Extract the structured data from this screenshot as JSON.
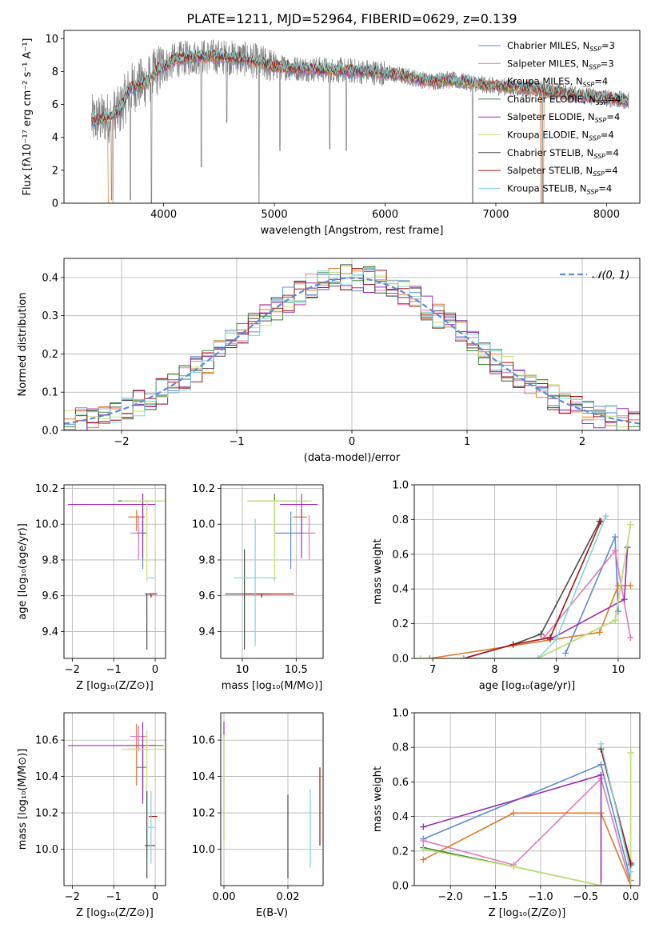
{
  "title": "PLATE=1211, MJD=52964, FIBERID=0629, z=0.139",
  "colors": {
    "chabrier_miles": "#5b8bd6",
    "salpeter_miles": "#e07ab8",
    "kroupa_miles": "#e07a2a",
    "chabrier_elodie": "#3a8a3a",
    "salpeter_elodie": "#9a2fb0",
    "kroupa_elodie": "#c7e07a",
    "chabrier_stelib": "#4a4a4a",
    "salpeter_stelib": "#a31616",
    "kroupa_stelib": "#7fd6d6",
    "data": "#808080"
  },
  "chart_data": [
    {
      "id": "spectrum",
      "type": "line",
      "xlabel": "wavelength [Angstrom, rest frame]",
      "ylabel": "Flux [fλ10⁻¹⁷ erg cm⁻² s⁻¹ A⁻¹]",
      "xlim": [
        3100,
        8300
      ],
      "ylim": [
        0,
        10.5
      ],
      "xticks": [
        4000,
        5000,
        6000,
        7000,
        8000
      ],
      "yticks": [
        0,
        2,
        4,
        6,
        8,
        10
      ],
      "grid": false,
      "legend_position": "top-right",
      "legend": [
        {
          "label": "Chabrier MILES, N",
          "sub": "SSP",
          "tail": "=3",
          "color_key": "chabrier_miles"
        },
        {
          "label": "Salpeter MILES, N",
          "sub": "SSP",
          "tail": "=3",
          "color_key": "salpeter_miles"
        },
        {
          "label": "Kroupa MILES, N",
          "sub": "SSP",
          "tail": "=4",
          "color_key": "kroupa_miles"
        },
        {
          "label": "Chabrier ELODIE, N",
          "sub": "SSP",
          "tail": "=4",
          "color_key": "chabrier_elodie"
        },
        {
          "label": "Salpeter ELODIE, N",
          "sub": "SSP",
          "tail": "=4",
          "color_key": "salpeter_elodie"
        },
        {
          "label": "Kroupa ELODIE, N",
          "sub": "SSP",
          "tail": "=4",
          "color_key": "kroupa_elodie"
        },
        {
          "label": "Chabrier STELIB, N",
          "sub": "SSP",
          "tail": "=4",
          "color_key": "chabrier_stelib"
        },
        {
          "label": "Salpeter STELIB, N",
          "sub": "SSP",
          "tail": "=4",
          "color_key": "salpeter_stelib"
        },
        {
          "label": "Kroupa STELIB, N",
          "sub": "SSP",
          "tail": "=4",
          "color_key": "kroupa_stelib"
        }
      ],
      "continuum": [
        [
          3350,
          5.0
        ],
        [
          3500,
          5.2
        ],
        [
          3600,
          5.6
        ],
        [
          3700,
          7.0
        ],
        [
          3850,
          7.4
        ],
        [
          3950,
          8.1
        ],
        [
          4100,
          8.7
        ],
        [
          4300,
          8.9
        ],
        [
          4500,
          8.9
        ],
        [
          4700,
          8.8
        ],
        [
          4850,
          8.6
        ],
        [
          5000,
          8.3
        ],
        [
          5200,
          8.2
        ],
        [
          5500,
          8.1
        ],
        [
          5800,
          8.0
        ],
        [
          6000,
          7.9
        ],
        [
          6200,
          7.7
        ],
        [
          6400,
          7.4
        ],
        [
          6550,
          7.5
        ],
        [
          6800,
          7.3
        ],
        [
          7000,
          7.1
        ],
        [
          7200,
          7.0
        ],
        [
          7400,
          6.9
        ],
        [
          7700,
          6.6
        ],
        [
          8000,
          6.4
        ],
        [
          8200,
          6.2
        ]
      ],
      "dips": [
        {
          "x": 3530,
          "y": 0.2
        },
        {
          "x": 3700,
          "y": 0.2
        },
        {
          "x": 3890,
          "y": 0.0
        },
        {
          "x": 4340,
          "y": 2.2
        },
        {
          "x": 4570,
          "y": 4.9
        },
        {
          "x": 4862,
          "y": 0.0
        },
        {
          "x": 5050,
          "y": 3.2
        },
        {
          "x": 5500,
          "y": 3.3
        },
        {
          "x": 5650,
          "y": 3.2
        },
        {
          "x": 6790,
          "y": 0.0
        },
        {
          "x": 7420,
          "y": 0.0
        }
      ],
      "model_dropouts": [
        {
          "x0": 3500,
          "x1": 3545,
          "color_key": "kroupa_miles"
        },
        {
          "x0": 7405,
          "x1": 7430,
          "color_key": "kroupa_miles"
        }
      ]
    },
    {
      "id": "residuals",
      "type": "histogram",
      "xlabel": "(data-model)/error",
      "ylabel": "Normed distribution",
      "xlim": [
        -2.5,
        2.5
      ],
      "ylim": [
        0,
        0.45
      ],
      "xticks": [
        -2,
        -1,
        0,
        1,
        2
      ],
      "yticks": [
        0.0,
        0.1,
        0.2,
        0.3,
        0.4
      ],
      "grid": true,
      "bin_width": 0.1,
      "bins_from": -2.5,
      "reference_curve": {
        "label": "𝒩(0, 1)",
        "color": "#5b8bd6",
        "style": "dashed"
      },
      "legend_position": "top-right"
    },
    {
      "id": "age_vs_Z",
      "type": "errorbar",
      "xlabel": "Z [log₁₀(Z/Z⊙)]",
      "ylabel": "age  [log₁₀(age/yr)]",
      "xlim": [
        -2.2,
        0.25
      ],
      "ylim": [
        9.25,
        10.22
      ],
      "xticks": [
        -2,
        -1,
        0
      ],
      "yticks": [
        9.4,
        9.6,
        9.8,
        10.0,
        10.2
      ],
      "grid": true,
      "points": [
        {
          "x": -0.45,
          "y": 10.04,
          "xerr": [
            0.2,
            0.2
          ],
          "yerr": [
            0.08,
            0.04
          ],
          "color_key": "kroupa_miles"
        },
        {
          "x": -0.4,
          "y": 9.95,
          "xerr": [
            0.2,
            0.2
          ],
          "yerr": [
            0.15,
            0.1
          ],
          "color_key": "salpeter_miles"
        },
        {
          "x": -0.3,
          "y": 9.95,
          "xerr": [
            0.15,
            0.1
          ],
          "yerr": [
            0.2,
            0.12
          ],
          "color_key": "chabrier_miles"
        },
        {
          "x": -0.3,
          "y": 10.13,
          "xerr": [
            0.6,
            0.45
          ],
          "yerr": [
            0.2,
            0.04
          ],
          "color_key": "chabrier_elodie"
        },
        {
          "x": -0.3,
          "y": 10.11,
          "xerr": [
            1.8,
            0.3
          ],
          "yerr": [
            0.3,
            0.06
          ],
          "color_key": "salpeter_elodie"
        },
        {
          "x": -0.2,
          "y": 10.13,
          "xerr": [
            0.6,
            0.45
          ],
          "yerr": [
            0.45,
            0.0
          ],
          "color_key": "kroupa_elodie"
        },
        {
          "x": -0.2,
          "y": 9.61,
          "xerr": [
            0.05,
            0.2
          ],
          "yerr": [
            0.31,
            0.0
          ],
          "color_key": "chabrier_stelib"
        },
        {
          "x": -0.1,
          "y": 9.61,
          "xerr": [
            0.05,
            0.15
          ],
          "yerr": [
            0.02,
            0.0
          ],
          "color_key": "salpeter_stelib"
        },
        {
          "x": -0.1,
          "y": 9.7,
          "xerr": [
            0.1,
            0.1
          ],
          "yerr": [
            0.0,
            0.0
          ],
          "color_key": "kroupa_stelib"
        }
      ]
    },
    {
      "id": "age_vs_mass",
      "type": "errorbar",
      "xlabel": "mass [log₁₀(M/M⊙)]",
      "ylabel": "",
      "xlim": [
        9.8,
        10.75
      ],
      "ylim": [
        9.25,
        10.22
      ],
      "xticks": [
        10.0,
        10.5
      ],
      "yticks": [
        9.4,
        9.6,
        9.8,
        10.0,
        10.2
      ],
      "grid": true,
      "points": [
        {
          "x": 10.55,
          "y": 10.04,
          "xerr": [
            0.08,
            0.05
          ],
          "yerr": [
            0.08,
            0.04
          ],
          "color_key": "kroupa_miles"
        },
        {
          "x": 10.62,
          "y": 9.95,
          "xerr": [
            0.06,
            0.06
          ],
          "yerr": [
            0.15,
            0.1
          ],
          "color_key": "salpeter_miles"
        },
        {
          "x": 10.45,
          "y": 9.95,
          "xerr": [
            0.15,
            0.12
          ],
          "yerr": [
            0.2,
            0.12
          ],
          "color_key": "chabrier_miles"
        },
        {
          "x": 10.3,
          "y": 10.13,
          "xerr": [
            0.25,
            0.3
          ],
          "yerr": [
            0.2,
            0.04
          ],
          "color_key": "chabrier_elodie"
        },
        {
          "x": 10.55,
          "y": 10.11,
          "xerr": [
            0.2,
            0.15
          ],
          "yerr": [
            0.3,
            0.06
          ],
          "color_key": "salpeter_elodie"
        },
        {
          "x": 10.3,
          "y": 10.13,
          "xerr": [
            0.25,
            0.35
          ],
          "yerr": [
            0.45,
            0.0
          ],
          "color_key": "kroupa_elodie"
        },
        {
          "x": 10.02,
          "y": 9.61,
          "xerr": [
            0.18,
            0.25
          ],
          "yerr": [
            0.31,
            0.25
          ],
          "color_key": "chabrier_stelib"
        },
        {
          "x": 10.18,
          "y": 9.61,
          "xerr": [
            0.15,
            0.3
          ],
          "yerr": [
            0.02,
            0.0
          ],
          "color_key": "salpeter_stelib"
        },
        {
          "x": 10.12,
          "y": 9.7,
          "xerr": [
            0.2,
            0.2
          ],
          "yerr": [
            0.38,
            0.33
          ],
          "color_key": "kroupa_stelib"
        }
      ]
    },
    {
      "id": "weight_vs_age",
      "type": "line",
      "xlabel": "age  [log₁₀(age/yr)]",
      "ylabel": "mass weight",
      "xlim": [
        6.7,
        10.35
      ],
      "ylim": [
        0,
        1.0
      ],
      "xticks": [
        7,
        8,
        9,
        10
      ],
      "yticks": [
        0.0,
        0.2,
        0.4,
        0.6,
        0.8,
        1.0
      ],
      "grid": true,
      "series": [
        {
          "color_key": "chabrier_miles",
          "x": [
            9.15,
            9.95,
            10.0
          ],
          "y": [
            0.03,
            0.7,
            0.27
          ]
        },
        {
          "color_key": "salpeter_miles",
          "x": [
            8.8,
            9.95,
            10.2
          ],
          "y": [
            0.12,
            0.62,
            0.12
          ]
        },
        {
          "color_key": "kroupa_miles",
          "x": [
            6.95,
            9.7,
            10.0,
            10.2
          ],
          "y": [
            0.0,
            0.15,
            0.42,
            0.42
          ]
        },
        {
          "color_key": "chabrier_elodie",
          "x": [
            8.7,
            9.95,
            10.2
          ],
          "y": [
            0.0,
            0.22,
            0.77
          ]
        },
        {
          "color_key": "salpeter_elodie",
          "x": [
            8.9,
            10.1,
            10.15
          ],
          "y": [
            0.11,
            0.34,
            0.64
          ]
        },
        {
          "color_key": "kroupa_elodie",
          "x": [
            6.8,
            8.7,
            9.95,
            10.2
          ],
          "y": [
            0.0,
            0.0,
            0.22,
            0.77
          ]
        },
        {
          "color_key": "chabrier_stelib",
          "x": [
            7.5,
            8.3,
            8.75,
            9.7
          ],
          "y": [
            0.0,
            0.08,
            0.14,
            0.79
          ]
        },
        {
          "color_key": "salpeter_stelib",
          "x": [
            7.5,
            8.3,
            8.9,
            9.72
          ],
          "y": [
            0.0,
            0.08,
            0.12,
            0.79
          ]
        },
        {
          "color_key": "kroupa_stelib",
          "x": [
            7.5,
            8.7,
            9.0,
            9.8
          ],
          "y": [
            0.0,
            0.0,
            0.11,
            0.82
          ]
        }
      ]
    },
    {
      "id": "mass_vs_Z",
      "type": "errorbar",
      "xlabel": "Z [log₁₀(Z/Z⊙)]",
      "ylabel": "mass [log₁₀(M/M⊙)]",
      "xlim": [
        -2.2,
        0.25
      ],
      "ylim": [
        9.8,
        10.75
      ],
      "xticks": [
        -2,
        -1,
        0
      ],
      "yticks": [
        10.0,
        10.2,
        10.4,
        10.6
      ],
      "grid": true,
      "points": [
        {
          "x": -0.45,
          "y": 10.55,
          "xerr": [
            0.2,
            0.2
          ],
          "yerr": [
            0.2,
            0.14
          ],
          "color_key": "kroupa_miles"
        },
        {
          "x": -0.4,
          "y": 10.62,
          "xerr": [
            0.2,
            0.2
          ],
          "yerr": [
            0.08,
            0.06
          ],
          "color_key": "salpeter_miles"
        },
        {
          "x": -0.3,
          "y": 10.45,
          "xerr": [
            0.15,
            0.1
          ],
          "yerr": [
            0.12,
            0.12
          ],
          "color_key": "chabrier_miles"
        },
        {
          "x": -0.3,
          "y": 10.57,
          "xerr": [
            0.6,
            0.5
          ],
          "yerr": [
            0.3,
            0.06
          ],
          "color_key": "chabrier_elodie"
        },
        {
          "x": -0.3,
          "y": 10.57,
          "xerr": [
            1.8,
            0.3
          ],
          "yerr": [
            0.32,
            0.13
          ],
          "color_key": "salpeter_elodie"
        },
        {
          "x": -0.2,
          "y": 10.55,
          "xerr": [
            0.6,
            0.45
          ],
          "yerr": [
            0.6,
            0.1
          ],
          "color_key": "kroupa_elodie"
        },
        {
          "x": -0.2,
          "y": 10.02,
          "xerr": [
            0.05,
            0.2
          ],
          "yerr": [
            0.18,
            0.3
          ],
          "color_key": "chabrier_stelib"
        },
        {
          "x": -0.1,
          "y": 10.18,
          "xerr": [
            0.05,
            0.15
          ],
          "yerr": [
            0.0,
            0.0
          ],
          "color_key": "salpeter_stelib"
        },
        {
          "x": -0.1,
          "y": 10.12,
          "xerr": [
            0.1,
            0.1
          ],
          "yerr": [
            0.2,
            0.2
          ],
          "color_key": "kroupa_stelib"
        }
      ]
    },
    {
      "id": "mass_vs_ebv",
      "type": "errorbar",
      "xlabel": "E(B-V)",
      "ylabel": "",
      "xlim": [
        -0.001,
        0.031
      ],
      "ylim": [
        9.8,
        10.75
      ],
      "xticks": [
        0.0,
        0.02
      ],
      "xticklabels": [
        "0.00",
        "0.02"
      ],
      "yticks": [
        10.0,
        10.2,
        10.4,
        10.6
      ],
      "grid": true,
      "points": [
        {
          "x": 0.0,
          "y": 10.55,
          "xerr": [
            0,
            0
          ],
          "yerr": [
            0.5,
            0.15
          ],
          "color_key": "salpeter_elodie"
        },
        {
          "x": 0.0,
          "y": 10.45,
          "xerr": [
            0,
            0
          ],
          "yerr": [
            0.42,
            0.18
          ],
          "color_key": "kroupa_elodie"
        },
        {
          "x": 0.02,
          "y": 10.02,
          "xerr": [
            0,
            0
          ],
          "yerr": [
            0.18,
            0.28
          ],
          "color_key": "chabrier_stelib"
        },
        {
          "x": 0.027,
          "y": 10.12,
          "xerr": [
            0,
            0
          ],
          "yerr": [
            0.22,
            0.21
          ],
          "color_key": "kroupa_stelib"
        },
        {
          "x": 0.03,
          "y": 10.22,
          "xerr": [
            0,
            0
          ],
          "yerr": [
            0.2,
            0.23
          ],
          "color_key": "salpeter_stelib"
        }
      ]
    },
    {
      "id": "weight_vs_Z",
      "type": "line",
      "xlabel": "Z [log₁₀(Z/Z⊙)]",
      "ylabel": "mass weight",
      "xlim": [
        -2.4,
        0.1
      ],
      "ylim": [
        0,
        1.0
      ],
      "xticks": [
        -2.0,
        -1.5,
        -1.0,
        -0.5,
        0.0
      ],
      "xticklabels": [
        "−2.0",
        "−1.5",
        "−1.0",
        "−0.5",
        "0.0"
      ],
      "yticks": [
        0.0,
        0.2,
        0.4,
        0.6,
        0.8,
        1.0
      ],
      "grid": true,
      "series": [
        {
          "color_key": "chabrier_miles",
          "x": [
            -2.3,
            -0.33,
            0.0
          ],
          "y": [
            0.27,
            0.7,
            0.03
          ]
        },
        {
          "color_key": "salpeter_miles",
          "x": [
            -2.3,
            -1.3,
            -0.33,
            0.0
          ],
          "y": [
            0.26,
            0.12,
            0.62,
            0.0
          ]
        },
        {
          "color_key": "kroupa_miles",
          "x": [
            -2.3,
            -1.3,
            -0.33,
            0.0
          ],
          "y": [
            0.15,
            0.42,
            0.42,
            0.0
          ]
        },
        {
          "color_key": "chabrier_elodie",
          "x": [
            -2.3,
            -1.3,
            -0.33,
            0.0,
            0.0
          ],
          "y": [
            0.22,
            0.11,
            0.0,
            0.0,
            0.77
          ]
        },
        {
          "color_key": "salpeter_elodie",
          "x": [
            -2.3,
            -0.33,
            -0.33
          ],
          "y": [
            0.34,
            0.64,
            0.0
          ]
        },
        {
          "color_key": "kroupa_elodie",
          "x": [
            -2.3,
            -1.3,
            -0.33,
            0.0,
            0.0
          ],
          "y": [
            0.21,
            0.11,
            0.0,
            0.0,
            0.77
          ]
        },
        {
          "color_key": "chabrier_stelib",
          "x": [
            -0.33,
            0.0
          ],
          "y": [
            0.79,
            0.12
          ]
        },
        {
          "color_key": "salpeter_stelib",
          "x": [
            -0.33,
            0.0
          ],
          "y": [
            0.79,
            0.13
          ]
        },
        {
          "color_key": "kroupa_stelib",
          "x": [
            -0.33,
            0.0
          ],
          "y": [
            0.82,
            0.08
          ]
        }
      ]
    }
  ]
}
